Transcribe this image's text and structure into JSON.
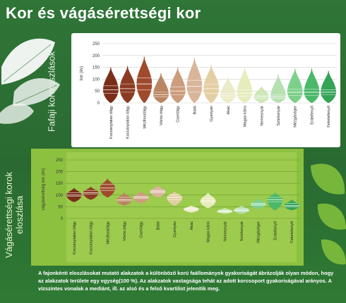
{
  "title": "Kor és vágásérettségi kor",
  "section1_label": "Fafaji koreloszlások",
  "section2_label_line1": "Vágásérettségi korok",
  "section2_label_line2": "eloszlása",
  "footer_text": "A fajonkénti eloszlásokat mutató alakzatok a különböző korú faállományok gyakoriságát ábrázolják olyan módon, hogy az alakzatok területe egy egység(100 %). Az alakzatok vastagsága tehát az adott korcsoport gyakoriságával arányos. A vízszintes vonalak a mediánt, ill. az alsó és a felső kvartilist jelenítik meg.",
  "chart_data": [
    {
      "type": "violin",
      "ylabel": "kor (év)",
      "ylim": [
        0,
        250
      ],
      "yticks": [
        0,
        50,
        100,
        150,
        200,
        250
      ],
      "categories": [
        "Kocsánytalan tölgy",
        "Kocsánytalan tölgy",
        "Mézlhostölgy",
        "Vörös tölgy",
        "Csertölgy",
        "Bükk",
        "Gyertyán",
        "Akác",
        "Magas kőris",
        "Nemesnyár",
        "Szürkenyár",
        "Mézgáséger",
        "Erdeifenyő",
        "Feketefenyő"
      ],
      "colors": [
        "#7a2e1a",
        "#8a3b22",
        "#a04a2c",
        "#b98562",
        "#cc9c7c",
        "#d9b59a",
        "#e3cfa2",
        "#ecebc8",
        "#e6ecbc",
        "#cfe6b8",
        "#b6e0b0",
        "#7dd08a",
        "#4cb86a",
        "#33a356"
      ],
      "medians": [
        55,
        60,
        80,
        35,
        50,
        70,
        60,
        30,
        40,
        25,
        25,
        45,
        45,
        45
      ],
      "q1": [
        40,
        45,
        55,
        25,
        35,
        45,
        40,
        20,
        28,
        18,
        18,
        32,
        32,
        35
      ],
      "q3": [
        72,
        80,
        105,
        45,
        68,
        95,
        78,
        40,
        55,
        32,
        33,
        58,
        58,
        55
      ],
      "ymin": [
        0,
        0,
        0,
        0,
        0,
        0,
        0,
        0,
        0,
        0,
        0,
        0,
        0,
        0
      ],
      "ymax": [
        150,
        155,
        195,
        125,
        150,
        190,
        160,
        110,
        150,
        70,
        120,
        145,
        145,
        135
      ]
    },
    {
      "type": "violin",
      "ylabel": "vágásérettség kor (év)",
      "ylim": [
        0,
        250
      ],
      "yticks": [
        0,
        50,
        100,
        150,
        200,
        250
      ],
      "categories": [
        "Kocsánytalan tölgy",
        "Kocsánytalan tölgy",
        "Mézlhostölgy",
        "Vörös tölgy",
        "Csertölgy",
        "Bükk",
        "Gyertyán",
        "Akác",
        "Magas kőris",
        "Nemesnyár",
        "Szürkenyár",
        "Mézgáséger",
        "Erdeifenyő",
        "Feketefenyő"
      ],
      "colors": [
        "#7a2e1a",
        "#8a3b22",
        "#a04a2c",
        "#b98562",
        "#cc9c7c",
        "#d9b59a",
        "#e3cfa2",
        "#ecebc8",
        "#e6ecbc",
        "#cfe6b8",
        "#b6e0b0",
        "#7dd08a",
        "#4cb86a",
        "#33a356"
      ],
      "medians": [
        100,
        110,
        130,
        80,
        90,
        115,
        90,
        40,
        75,
        30,
        35,
        60,
        80,
        55
      ],
      "q1": [
        95,
        105,
        120,
        75,
        85,
        110,
        80,
        35,
        70,
        28,
        32,
        55,
        70,
        50
      ],
      "q3": [
        110,
        120,
        145,
        90,
        95,
        120,
        100,
        45,
        85,
        35,
        40,
        65,
        90,
        65
      ],
      "ymin": [
        70,
        80,
        90,
        55,
        65,
        90,
        55,
        25,
        45,
        20,
        20,
        40,
        35,
        35
      ],
      "ymax": [
        130,
        135,
        170,
        110,
        115,
        140,
        115,
        55,
        110,
        45,
        55,
        85,
        110,
        80
      ]
    }
  ]
}
